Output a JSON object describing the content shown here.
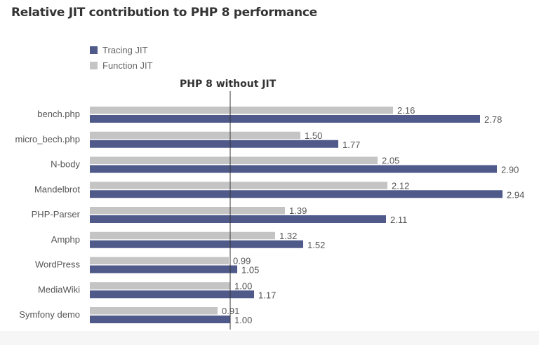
{
  "chart_data": {
    "type": "bar",
    "orientation": "horizontal",
    "title": "Relative JIT contribution to PHP 8 performance",
    "categories": [
      "bench.php",
      "micro_bech.php",
      "N-body",
      "Mandelbrot",
      "PHP-Parser",
      "Amphp",
      "WordPress",
      "MediaWiki",
      "Symfony demo"
    ],
    "series": [
      {
        "name": "Function JIT",
        "color": "#c4c4c4",
        "values": [
          2.16,
          1.5,
          2.05,
          2.12,
          1.39,
          1.32,
          0.99,
          1.0,
          0.91
        ]
      },
      {
        "name": "Tracing JIT",
        "color": "#4f5a8a",
        "values": [
          2.78,
          1.77,
          2.9,
          2.94,
          2.11,
          1.52,
          1.05,
          1.17,
          1.0
        ]
      }
    ],
    "legend": {
      "placement": "top-left",
      "order": [
        "Tracing JIT",
        "Function JIT"
      ]
    },
    "reference_line": {
      "value": 1.0,
      "label": "PHP 8 without JIT"
    },
    "xlim": [
      0,
      3.1
    ],
    "grid": false
  }
}
